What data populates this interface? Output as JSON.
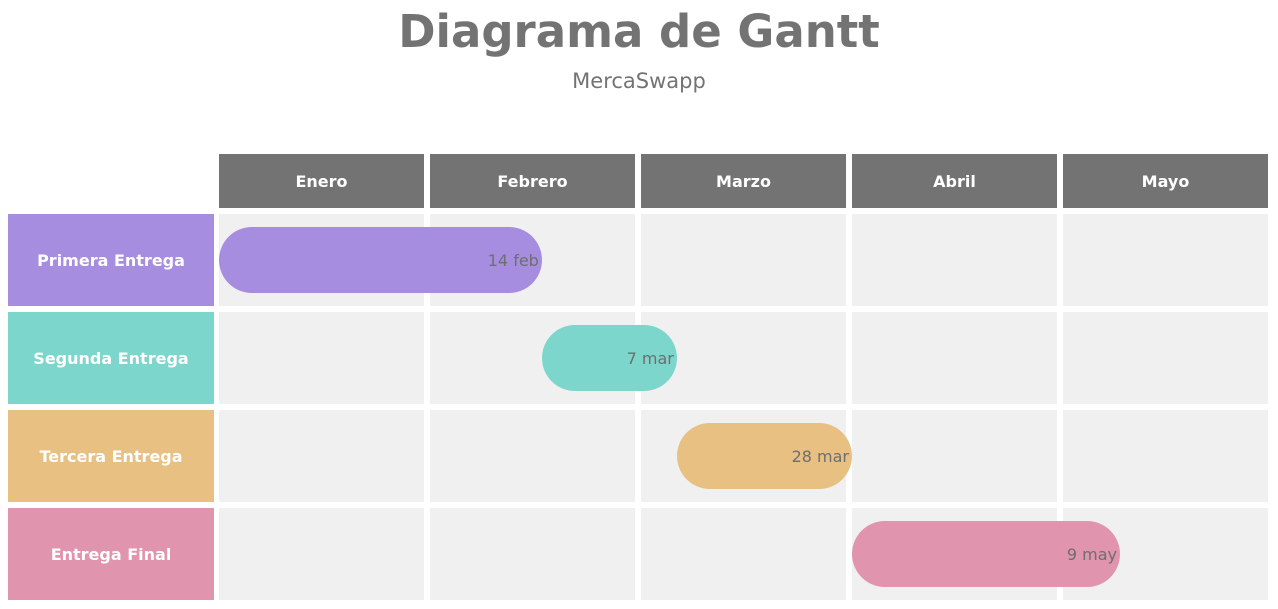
{
  "header": {
    "title": "Diagrama de Gantt",
    "subtitle": "MercaSwapp"
  },
  "months": [
    "Enero",
    "Febrero",
    "Marzo",
    "Abril",
    "Mayo"
  ],
  "tasks": [
    {
      "name": "Primera Entrega",
      "end_label": "14 feb",
      "start_month": 0.0,
      "end_month": 1.53,
      "color": "#a78ddf"
    },
    {
      "name": "Segunda Entrega",
      "end_label": "7 mar",
      "start_month": 1.53,
      "end_month": 2.17,
      "color": "#7dd6cb"
    },
    {
      "name": "Tercera Entrega",
      "end_label": "28 mar",
      "start_month": 2.17,
      "end_month": 3.0,
      "color": "#e8c082"
    },
    {
      "name": "Entrega Final",
      "end_label": "9 may",
      "start_month": 3.0,
      "end_month": 4.27,
      "color": "#e094ae"
    }
  ],
  "colors": {
    "header_bg": "#737373",
    "cell_bg": "#f0f0f0",
    "text_gray": "#737373"
  }
}
